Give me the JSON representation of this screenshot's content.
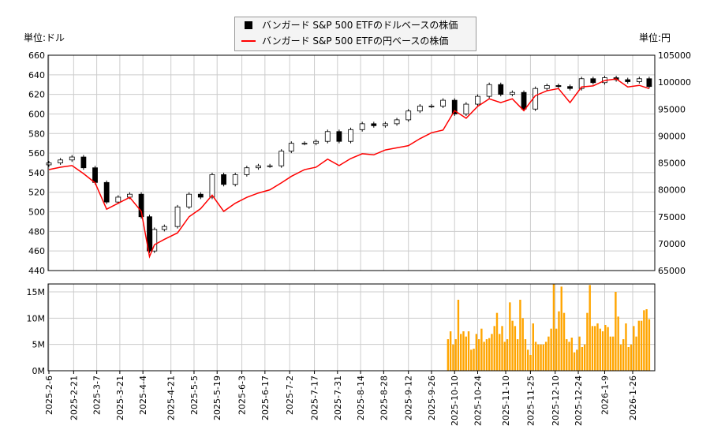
{
  "chart_data": [
    {
      "type": "candlestick+line",
      "legend": [
        "バンガード S&P 500 ETFのドルベースの株価",
        "バンガード S&P 500 ETFの円ベースの株価"
      ],
      "legend_placement": "top-center",
      "ylabel_left": "単位:ドル",
      "ylabel_right": "単位:円",
      "ylim_left": [
        440,
        660
      ],
      "ylim_right": [
        65000,
        105000
      ],
      "yticks_left": [
        440,
        460,
        480,
        500,
        520,
        540,
        560,
        580,
        600,
        620,
        640,
        660
      ],
      "yticks_right": [
        65000,
        70000,
        75000,
        80000,
        85000,
        90000,
        95000,
        100000,
        105000
      ],
      "grid": true,
      "colors": {
        "usd": "#000000",
        "jpy": "#ff0000"
      },
      "dates": [
        "2025-02-06",
        "2025-02-13",
        "2025-02-20",
        "2025-02-27",
        "2025-03-06",
        "2025-03-13",
        "2025-03-20",
        "2025-03-27",
        "2025-04-03",
        "2025-04-08",
        "2025-04-11",
        "2025-04-17",
        "2025-04-25",
        "2025-05-02",
        "2025-05-09",
        "2025-05-16",
        "2025-05-23",
        "2025-05-30",
        "2025-06-06",
        "2025-06-13",
        "2025-06-20",
        "2025-06-27",
        "2025-07-03",
        "2025-07-11",
        "2025-07-18",
        "2025-07-25",
        "2025-08-01",
        "2025-08-08",
        "2025-08-15",
        "2025-08-22",
        "2025-08-29",
        "2025-09-05",
        "2025-09-12",
        "2025-09-19",
        "2025-09-26",
        "2025-10-03",
        "2025-10-10",
        "2025-10-17",
        "2025-10-24",
        "2025-10-31",
        "2025-11-07",
        "2025-11-14",
        "2025-11-21",
        "2025-11-28",
        "2025-12-05",
        "2025-12-12",
        "2025-12-19",
        "2025-12-26",
        "2026-01-02",
        "2026-01-09",
        "2026-01-16",
        "2026-01-23",
        "2026-01-30",
        "2026-02-05"
      ],
      "usd_close": [
        550,
        553,
        556,
        545,
        530,
        510,
        515,
        518,
        495,
        460,
        482,
        485,
        505,
        518,
        515,
        538,
        528,
        538,
        545,
        547,
        547,
        562,
        570,
        570,
        572,
        582,
        572,
        584,
        590,
        588,
        590,
        594,
        603,
        608,
        608,
        614,
        600,
        610,
        618,
        630,
        620,
        622,
        605,
        626,
        629,
        628,
        626,
        636,
        632,
        637,
        635,
        633,
        636,
        628
      ],
      "jpy_close": [
        83750,
        84200,
        84500,
        83000,
        81300,
        76400,
        77500,
        78600,
        76000,
        67600,
        69800,
        70800,
        72000,
        75000,
        76500,
        79000,
        76000,
        77500,
        78600,
        79400,
        80000,
        81300,
        82500,
        83750,
        84200,
        85700,
        84500,
        85800,
        86700,
        86500,
        87400,
        87800,
        88200,
        89500,
        90600,
        91100,
        94700,
        93300,
        95500,
        96900,
        96200,
        96900,
        94700,
        97500,
        98400,
        98800,
        96200,
        99100,
        99300,
        100300,
        100600,
        99100,
        99400,
        98800
      ]
    },
    {
      "type": "bar",
      "color": "#ffa500",
      "ylim": [
        0,
        16500000
      ],
      "yticks": [
        "0M",
        "5M",
        "10M",
        "15M"
      ],
      "period": [
        "2025-10-06",
        "2026-02-05"
      ],
      "values_millions": [
        6,
        7.5,
        5,
        6,
        13.5,
        7,
        7.5,
        6.5,
        7.5,
        4,
        4.2,
        7,
        6,
        8,
        5.5,
        6,
        6.2,
        7,
        8.5,
        11,
        7,
        8.5,
        5.5,
        6,
        13,
        9.5,
        8.5,
        6,
        13.5,
        10,
        6,
        4,
        3,
        9,
        5.5,
        5,
        5,
        5,
        5.5,
        6.5,
        8,
        16.5,
        8,
        11.3,
        16,
        11,
        6,
        5.5,
        6.3,
        3.5,
        4,
        6.5,
        4.5,
        5,
        11,
        16.3,
        8.5,
        8.5,
        9,
        8,
        7.5,
        8.7,
        8.3,
        6.5,
        6.5,
        15,
        10.3,
        5,
        6,
        9,
        4.5,
        5,
        8.5,
        6.5,
        9.5,
        9.5,
        11.5,
        11.7,
        9.8
      ]
    }
  ],
  "xticks": [
    "2025-2-6",
    "2025-2-21",
    "2025-3-7",
    "2025-3-21",
    "2025-4-4",
    "2025-4-21",
    "2025-5-5",
    "2025-5-19",
    "2025-6-3",
    "2025-6-17",
    "2025-7-2",
    "2025-7-17",
    "2025-7-31",
    "2025-8-14",
    "2025-8-28",
    "2025-9-12",
    "2025-9-26",
    "2025-10-10",
    "2025-10-24",
    "2025-11-10",
    "2025-11-25",
    "2025-12-10",
    "2025-12-24",
    "2026-1-9",
    "2026-1-26"
  ]
}
